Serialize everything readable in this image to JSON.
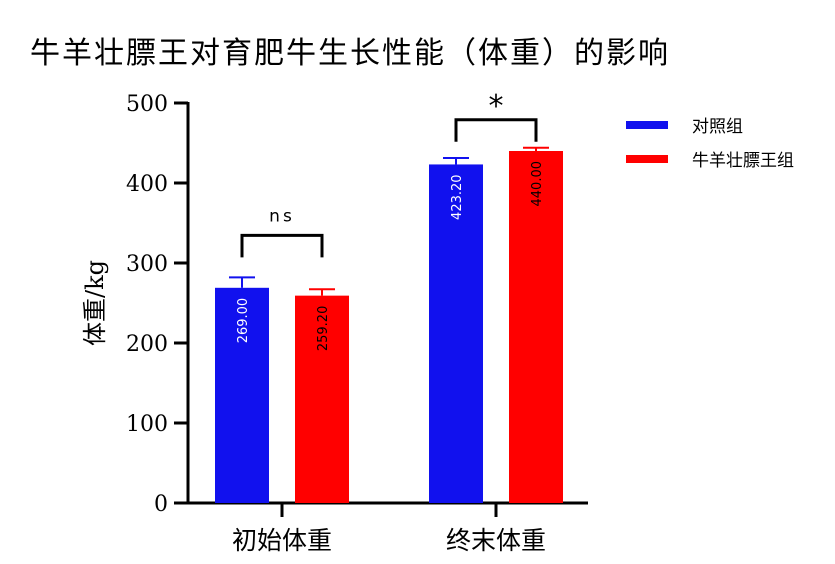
{
  "chart_data": {
    "type": "bar",
    "title": "牛羊壮膘王对育肥牛生长性能（体重）的影响",
    "ylabel": "体重/kg",
    "xlabel": "",
    "ylim": [
      0,
      500
    ],
    "yticks": [
      0,
      100,
      200,
      300,
      400,
      500
    ],
    "categories": [
      "初始体重",
      "终末体重"
    ],
    "series": [
      {
        "name": "对照组",
        "color": "#1111ee",
        "values": [
          269.0,
          423.2
        ],
        "errors": [
          13,
          8
        ],
        "data_labels": [
          "269.00",
          "423.20"
        ],
        "label_color": "#ffffff"
      },
      {
        "name": "牛羊壮膘王组",
        "color": "#ff0000",
        "values": [
          259.2,
          440.0
        ],
        "errors": [
          8,
          4
        ],
        "data_labels": [
          "259.20",
          "440.00"
        ],
        "label_color": "#000000"
      }
    ],
    "significance": [
      "ns",
      "*"
    ],
    "legend_position": "top-right"
  }
}
